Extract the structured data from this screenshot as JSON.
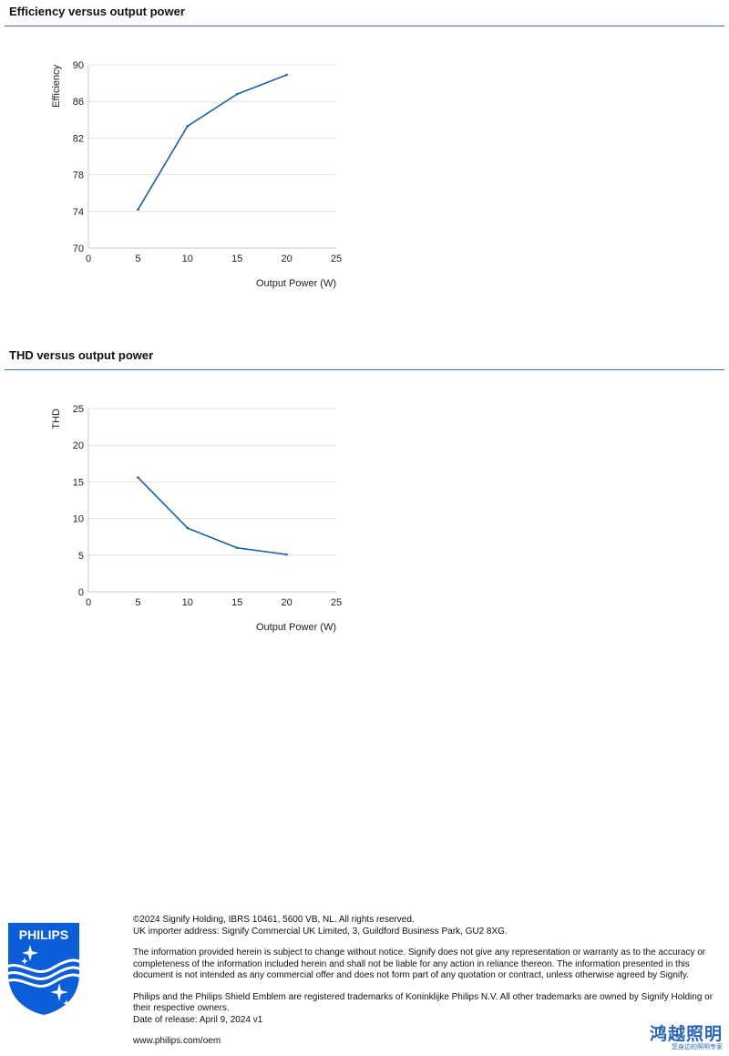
{
  "sections": [
    {
      "title": "Efficiency versus output power"
    },
    {
      "title": "THD versus output power"
    }
  ],
  "colors": {
    "rule": "#3d6fb6",
    "series": "#1f5fa8",
    "brand": "#0b5ed7",
    "watermark": "#2a67b8"
  },
  "chart_data": [
    {
      "type": "line",
      "title": "",
      "xlabel": "Output Power (W)",
      "ylabel": "Efficiency",
      "xlim": [
        0,
        25
      ],
      "ylim": [
        70,
        90
      ],
      "xticks": [
        0,
        5,
        10,
        15,
        20,
        25
      ],
      "yticks": [
        70,
        74,
        78,
        82,
        86,
        90
      ],
      "grid": true,
      "series": [
        {
          "x": [
            5,
            10,
            15,
            20
          ],
          "y": [
            74.2,
            83.3,
            86.8,
            88.9
          ]
        }
      ]
    },
    {
      "type": "line",
      "title": "",
      "xlabel": "Output Power (W)",
      "ylabel": "THD",
      "xlim": [
        0,
        25
      ],
      "ylim": [
        0,
        25
      ],
      "xticks": [
        0,
        5,
        10,
        15,
        20,
        25
      ],
      "yticks": [
        0,
        5,
        10,
        15,
        20,
        25
      ],
      "grid": true,
      "series": [
        {
          "x": [
            5,
            10,
            15,
            20
          ],
          "y": [
            15.6,
            8.7,
            6.0,
            5.1
          ]
        }
      ]
    }
  ],
  "logo": {
    "text": "PHILIPS",
    "icon": "philips-shield-icon"
  },
  "footer": {
    "copyright": "©2024 Signify Holding, IBRS 10461, 5600 VB, NL. All rights reserved.",
    "importer": "UK importer address: Signify Commercial UK Limited, 3, Guildford Business Park, GU2 8XG.",
    "disclaimer": "The information provided herein is subject to change without notice. Signify does not give any representation or warranty as to the accuracy or completeness of the information included herein and shall not be liable for any action in reliance thereon. The information presented in this document is not intended as any commercial offer and does not form part of any quotation or contract, unless otherwise agreed by Signify.",
    "trademarks": "Philips and the Philips Shield Emblem are registered trademarks of Koninklijke Philips N.V. All other trademarks are owned by Signify Holding or their respective owners.",
    "release_date": "Date of release: April 9, 2024 v1",
    "website": "www.philips.com/oem"
  },
  "watermark": {
    "main": "鸿越照明",
    "sub": "您身边的照明专家"
  }
}
